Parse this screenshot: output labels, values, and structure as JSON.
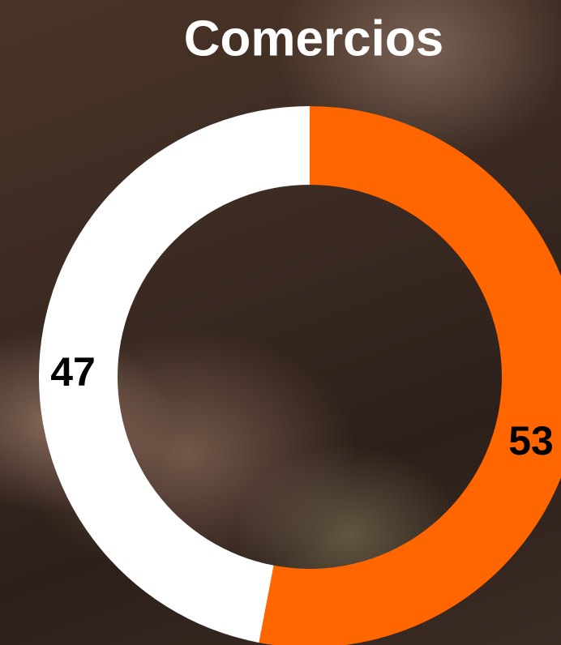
{
  "chart_data": {
    "type": "donut",
    "title": "Comercios",
    "categories": [
      null,
      null
    ],
    "values": [
      53,
      47
    ],
    "colors": [
      "#ff6600",
      "#ffffff"
    ]
  }
}
